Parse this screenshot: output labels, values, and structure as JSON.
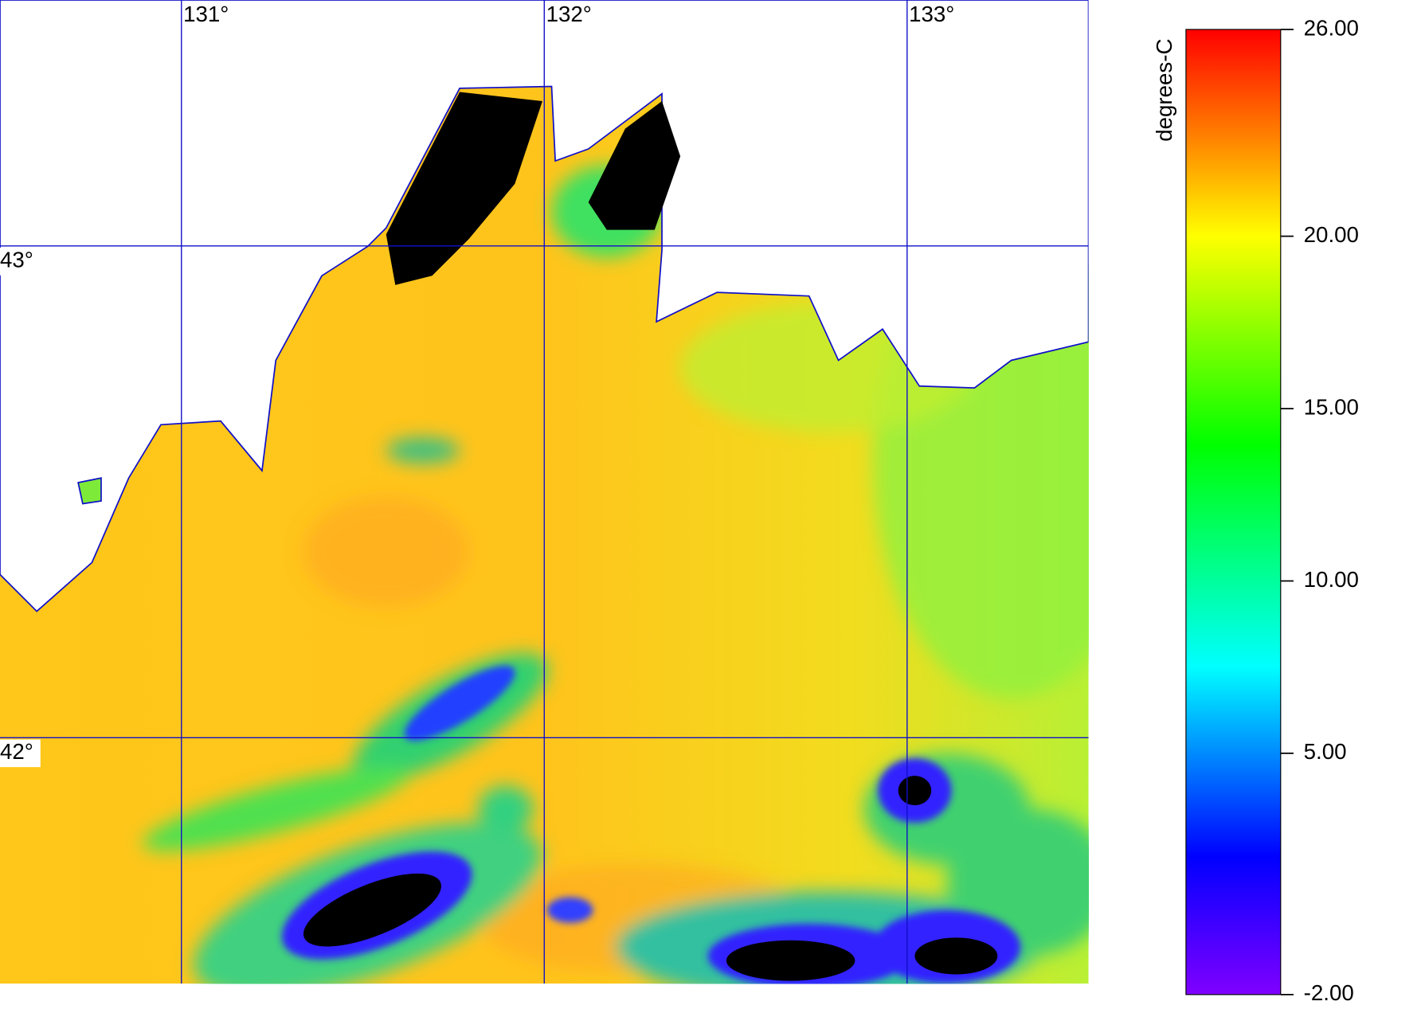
{
  "map": {
    "xlim": [
      130.5,
      133.5
    ],
    "ylim": [
      41.5,
      43.5
    ],
    "lon_ticks": [
      {
        "value": 131,
        "label": "131°"
      },
      {
        "value": 132,
        "label": "132°"
      },
      {
        "value": 133,
        "label": "133°"
      }
    ],
    "lat_ticks": [
      {
        "value": 43,
        "label": "43°"
      },
      {
        "value": 42,
        "label": "42°"
      }
    ]
  },
  "colorbar": {
    "title": "degrees-C",
    "range": [
      -2,
      26
    ],
    "ticks": [
      {
        "value": 26,
        "label": "26.00"
      },
      {
        "value": 20,
        "label": "20.00"
      },
      {
        "value": 15,
        "label": "15.00"
      },
      {
        "value": 10,
        "label": "10.00"
      },
      {
        "value": 5,
        "label": "5.00"
      },
      {
        "value": -2,
        "label": "-2.00"
      }
    ]
  }
}
